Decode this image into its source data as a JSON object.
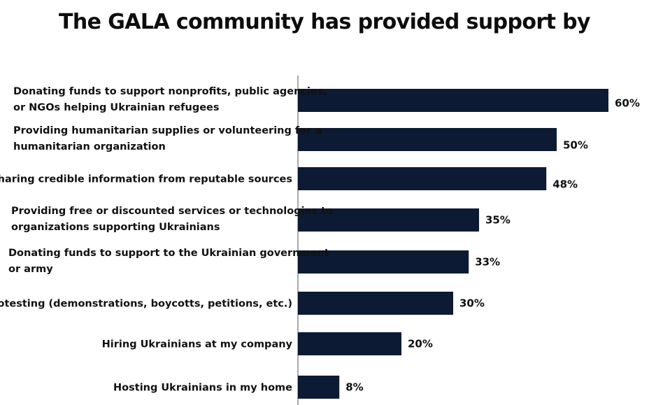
{
  "title": "The GALA community has provided support by",
  "colors": {
    "bar": "#0d1a33",
    "axis": "#555555",
    "text": "#111111"
  },
  "chart_data": {
    "type": "bar",
    "orientation": "horizontal",
    "title": "The GALA community has provided support by",
    "xlabel": "",
    "ylabel": "",
    "value_suffix": "%",
    "xlim": [
      0,
      60
    ],
    "grid": false,
    "categories": [
      [
        "Donating funds to support nonprofits, public agencies,",
        "or NGOs helping Ukrainian refugees"
      ],
      [
        "Providing humanitarian supplies or volunteering for a",
        "humanitarian organization"
      ],
      [
        "Sharing credible information from reputable sources"
      ],
      [
        "Providing free or discounted services or technologies to",
        "organizations supporting Ukrainians"
      ],
      [
        "Donating funds to support to the Ukrainian government",
        "or army"
      ],
      [
        "Protesting (demonstrations, boycotts, petitions, etc.)"
      ],
      [
        "Hiring Ukrainians at my company"
      ],
      [
        "Hosting Ukrainians in my home"
      ]
    ],
    "values": [
      60,
      50,
      48,
      35,
      33,
      30,
      20,
      8
    ],
    "data_labels": [
      "60%",
      "50%",
      "48%",
      "35%",
      "33%",
      "30%",
      "20%",
      "8%"
    ]
  }
}
